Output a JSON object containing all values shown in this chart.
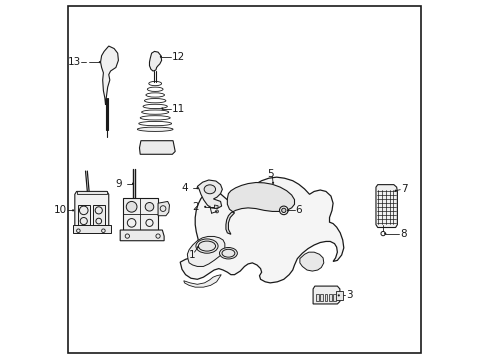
{
  "background_color": "#ffffff",
  "line_color": "#1a1a1a",
  "fig_width": 4.89,
  "fig_height": 3.6,
  "dpi": 100,
  "border": true,
  "label_positions": {
    "1": [
      0.392,
      0.318,
      0.375,
      0.3
    ],
    "2": [
      0.393,
      0.425,
      0.37,
      0.425
    ],
    "3": [
      0.76,
      0.152,
      0.782,
      0.152
    ],
    "4": [
      0.347,
      0.488,
      0.365,
      0.488
    ],
    "5": [
      0.568,
      0.565,
      0.568,
      0.58
    ],
    "6": [
      0.637,
      0.416,
      0.658,
      0.416
    ],
    "7": [
      0.912,
      0.498,
      0.93,
      0.498
    ],
    "8": [
      0.868,
      0.44,
      0.87,
      0.42
    ],
    "9": [
      0.235,
      0.53,
      0.22,
      0.53
    ],
    "10": [
      0.03,
      0.49,
      0.052,
      0.49
    ],
    "11": [
      0.298,
      0.71,
      0.316,
      0.71
    ],
    "12": [
      0.315,
      0.875,
      0.336,
      0.875
    ],
    "13": [
      0.087,
      0.81,
      0.072,
      0.81
    ]
  }
}
